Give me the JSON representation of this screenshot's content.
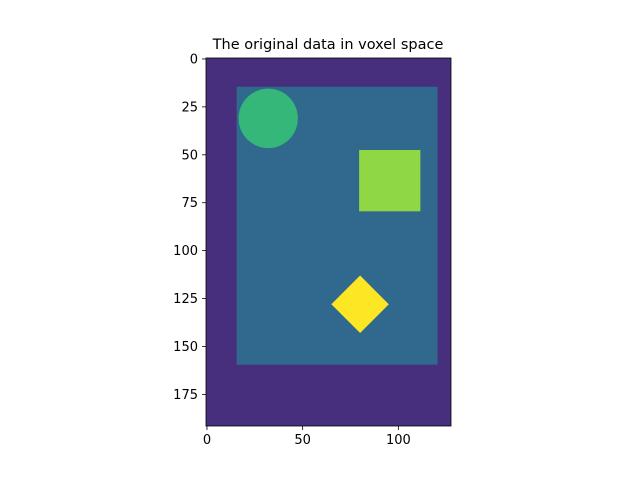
{
  "chart_data": {
    "type": "heatmap",
    "title": "The original data in voxel space",
    "xlabel": "",
    "ylabel": "",
    "xlim": [
      -0.5,
      127.5
    ],
    "ylim": [
      191.5,
      -0.5
    ],
    "y_axis_inverted": true,
    "x_ticks": [
      0,
      50,
      100
    ],
    "x_tick_labels": [
      "0",
      "50",
      "100"
    ],
    "y_ticks": [
      0,
      25,
      50,
      75,
      100,
      125,
      150,
      175
    ],
    "y_tick_labels": [
      "0",
      "25",
      "50",
      "75",
      "100",
      "125",
      "150",
      "175"
    ],
    "colormap": "viridis",
    "regions": [
      {
        "name": "background",
        "shape": "rectangle",
        "x_range": [
          0,
          127
        ],
        "y_range": [
          0,
          191
        ],
        "value": 0,
        "color": "#472f7d"
      },
      {
        "name": "large-rectangle",
        "shape": "rectangle",
        "x_range": [
          16,
          120
        ],
        "y_range": [
          15,
          159
        ],
        "value": 1,
        "color": "#31688e"
      },
      {
        "name": "circle",
        "shape": "circle",
        "center": [
          32,
          31
        ],
        "radius": 15.5,
        "value": 2,
        "color": "#35b779"
      },
      {
        "name": "square",
        "shape": "rectangle",
        "x_range": [
          80,
          111
        ],
        "y_range": [
          48,
          79
        ],
        "value": 3,
        "color": "#8fd744"
      },
      {
        "name": "diamond",
        "shape": "diamond",
        "center": [
          80,
          128
        ],
        "half_diagonal": 15,
        "value": 4,
        "color": "#fde725"
      }
    ]
  }
}
